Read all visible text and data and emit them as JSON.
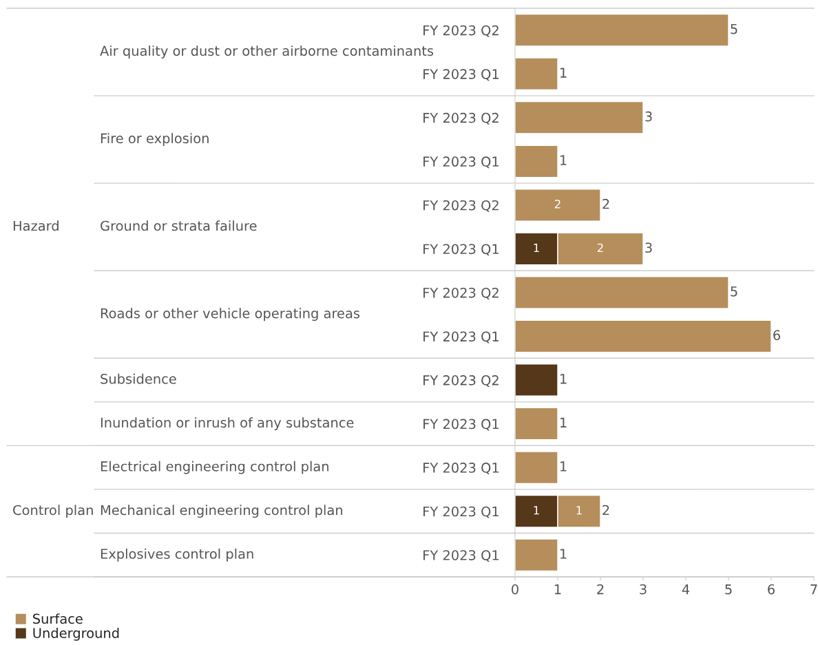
{
  "chart_data": {
    "type": "bar",
    "orientation": "horizontal",
    "stacked": true,
    "categories": [
      "FY 2023 Q2",
      "FY 2023 Q1",
      "FY 2023 Q2",
      "FY 2023 Q1",
      "FY 2023 Q2",
      "FY 2023 Q1",
      "FY 2023 Q2",
      "FY 2023 Q1",
      "FY 2023 Q2",
      "FY 2023 Q1",
      "FY 2023 Q1",
      "FY 2023 Q1",
      "FY 2023 Q1"
    ],
    "series": [
      {
        "name": "Underground",
        "color": "#553719",
        "values": [
          null,
          null,
          null,
          null,
          null,
          1,
          null,
          null,
          1,
          null,
          null,
          1,
          null
        ],
        "value_labels": [
          null,
          null,
          null,
          null,
          null,
          "1",
          null,
          null,
          null,
          null,
          null,
          "1",
          null
        ]
      },
      {
        "name": "Surface",
        "color": "#b58e5c",
        "values": [
          5,
          1,
          3,
          1,
          2,
          2,
          5,
          6,
          null,
          1,
          1,
          1,
          1
        ],
        "value_labels": [
          null,
          null,
          null,
          null,
          "2",
          "2",
          null,
          null,
          null,
          null,
          null,
          "1",
          null
        ]
      }
    ],
    "totals": [
      "5",
      "1",
      "3",
      "1",
      "2",
      "3",
      "5",
      "6",
      "1",
      "1",
      "1",
      "2",
      "1"
    ],
    "xlim": [
      0,
      7
    ],
    "xticks": [
      0,
      1,
      2,
      3,
      4,
      5,
      6,
      7
    ],
    "annotations": [
      "Hazard",
      "Air quality or dust or other airborne contaminants",
      "Fire or explosion",
      "Ground or strata failure",
      "Roads or other vehicle operating areas",
      "Subsidence",
      "Inundation or inrush of any substance",
      "Control plan",
      "Electrical engineering control plan",
      "Mechanical engineering control plan",
      "Explosives control plan"
    ],
    "legend": "bottom left",
    "grid": false
  }
}
